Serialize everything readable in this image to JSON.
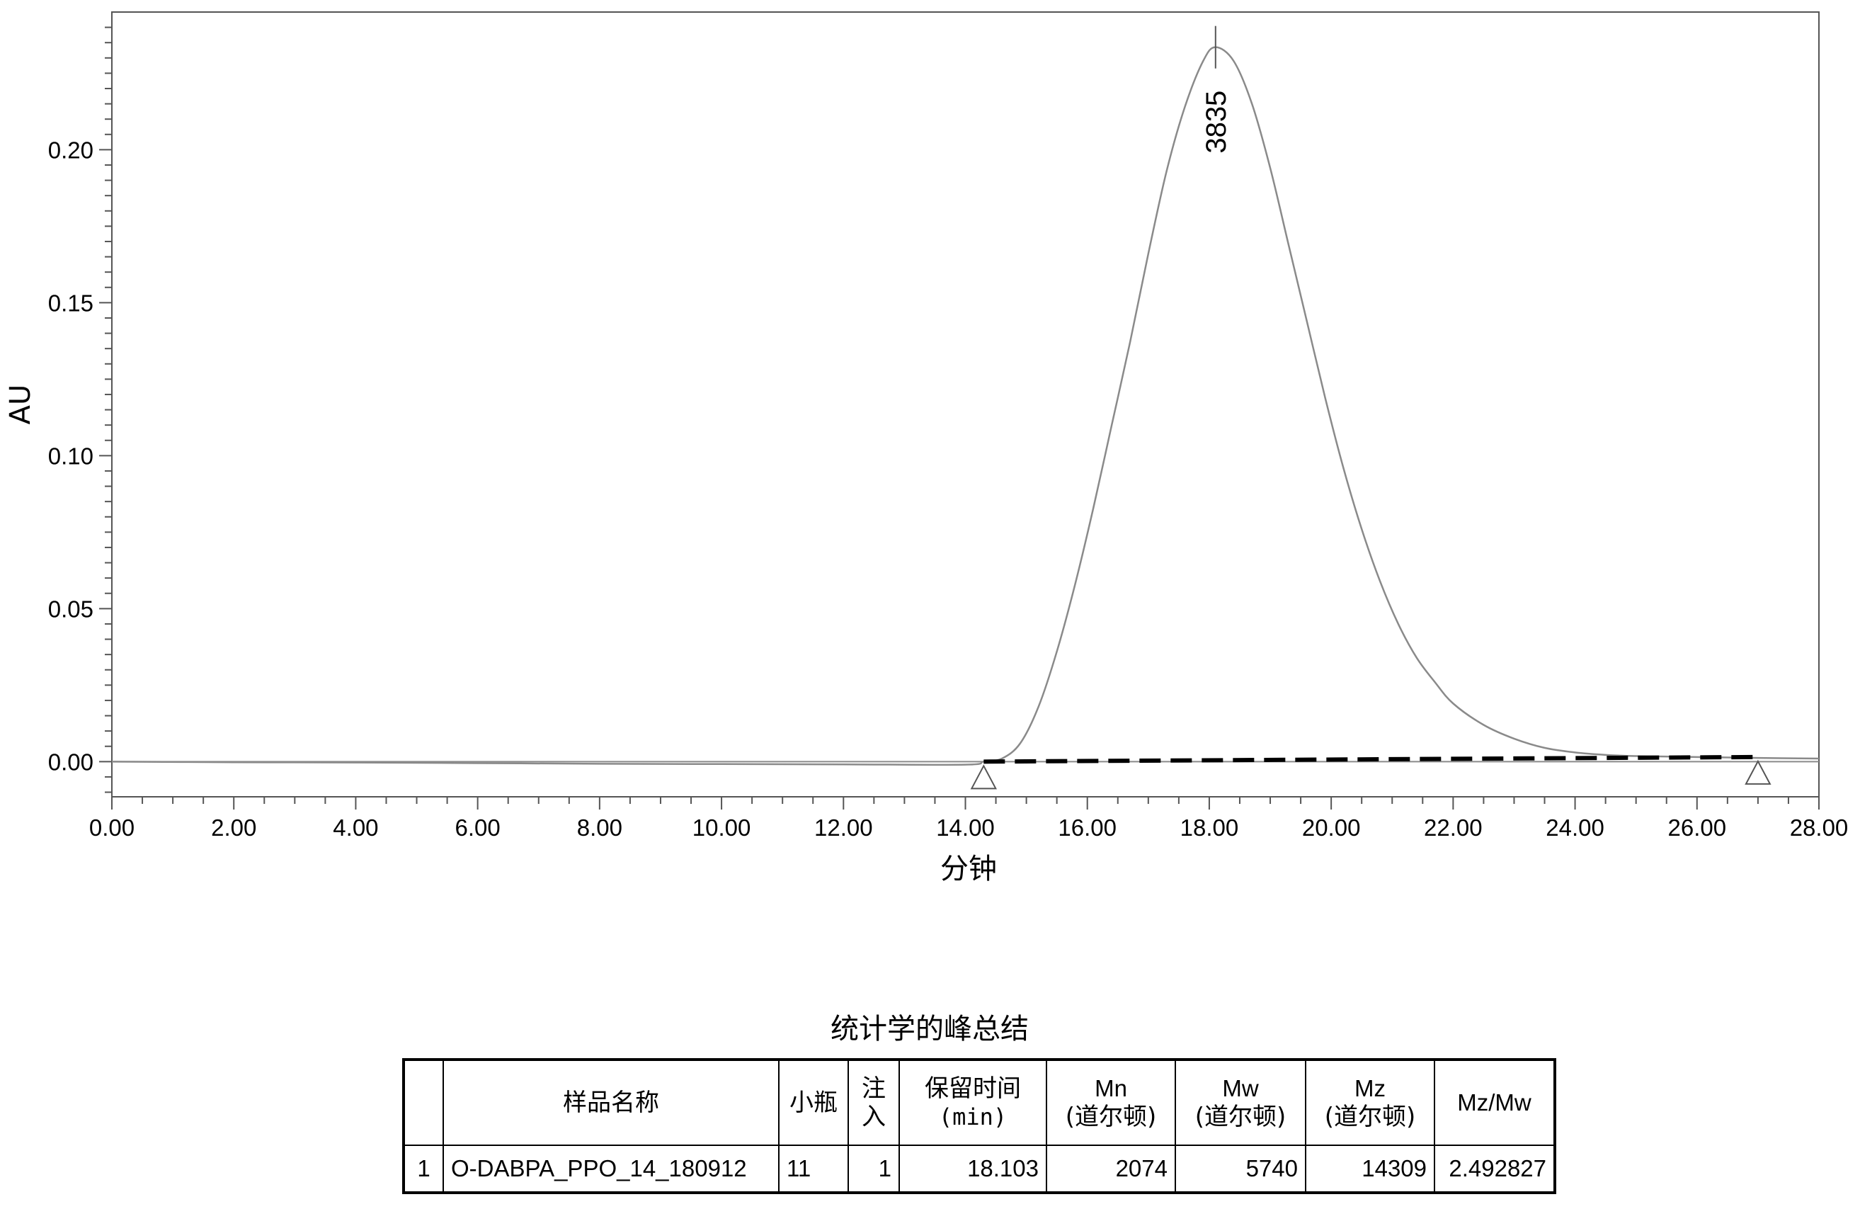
{
  "chart_data": {
    "type": "line",
    "xlabel": "分钟",
    "ylabel": "AU",
    "xlim": [
      0,
      28
    ],
    "ylim": [
      -0.0115,
      0.245
    ],
    "x_ticks": [
      "0.00",
      "2.00",
      "4.00",
      "6.00",
      "8.00",
      "10.00",
      "12.00",
      "14.00",
      "16.00",
      "18.00",
      "20.00",
      "22.00",
      "24.00",
      "26.00",
      "28.00"
    ],
    "y_ticks": [
      "0.00",
      "0.05",
      "0.10",
      "0.15",
      "0.20"
    ],
    "x_tick_values": [
      0,
      2,
      4,
      6,
      8,
      10,
      12,
      14,
      16,
      18,
      20,
      22,
      24,
      26,
      28
    ],
    "y_tick_values": [
      0,
      0.05,
      0.1,
      0.15,
      0.2
    ],
    "series": [
      {
        "x": [
          0,
          2,
          4,
          6,
          8,
          10,
          12,
          14,
          14.3,
          14.6,
          14.9,
          15.2,
          15.5,
          15.8,
          16.1,
          16.4,
          16.7,
          17.0,
          17.3,
          17.6,
          17.9,
          18.103,
          18.4,
          18.7,
          19.0,
          19.3,
          19.6,
          19.9,
          20.2,
          20.5,
          20.8,
          21.1,
          21.4,
          21.7,
          22.0,
          22.5,
          23.0,
          23.5,
          24.0,
          24.5,
          25.0,
          26.0,
          27.0,
          28.0
        ],
        "y": [
          0.0,
          -0.0002,
          -0.0003,
          -0.0005,
          -0.0007,
          -0.0008,
          -0.0009,
          -0.001,
          0.0,
          0.001,
          0.006,
          0.018,
          0.036,
          0.058,
          0.083,
          0.11,
          0.137,
          0.166,
          0.193,
          0.214,
          0.229,
          0.2335,
          0.229,
          0.215,
          0.194,
          0.169,
          0.144,
          0.119,
          0.096,
          0.076,
          0.059,
          0.045,
          0.034,
          0.026,
          0.019,
          0.012,
          0.0075,
          0.0045,
          0.003,
          0.0022,
          0.0018,
          0.0015,
          0.0012,
          0.001
        ]
      }
    ],
    "baseline": {
      "x": [
        14.3,
        27.0
      ],
      "y": [
        0.0,
        0.0015
      ]
    },
    "markers": [
      {
        "x": 14.3,
        "y": 0.0
      },
      {
        "x": 27.0,
        "y": 0.0015
      }
    ],
    "peak": {
      "x": 18.103,
      "y": 0.2335,
      "label": "3835"
    }
  },
  "summary": {
    "title": "统计学的峰总结",
    "headers": {
      "sample_name": "样品名称",
      "vial": "小瓶",
      "injection": "注入",
      "retention_time": "保留时间",
      "retention_time_unit": "(min)",
      "mn": "Mn",
      "mn_unit": "(道尔顿)",
      "mw": "Mw",
      "mw_unit": "(道尔顿)",
      "mz": "Mz",
      "mz_unit": "(道尔顿)",
      "mz_mw": "Mz/Mw"
    },
    "rows": [
      {
        "index": "1",
        "sample_name": "O-DABPA_PPO_14_180912",
        "vial": "11",
        "injection": "1",
        "retention_time": "18.103",
        "mn": "2074",
        "mw": "5740",
        "mz": "14309",
        "mz_mw": "2.492827"
      }
    ]
  }
}
